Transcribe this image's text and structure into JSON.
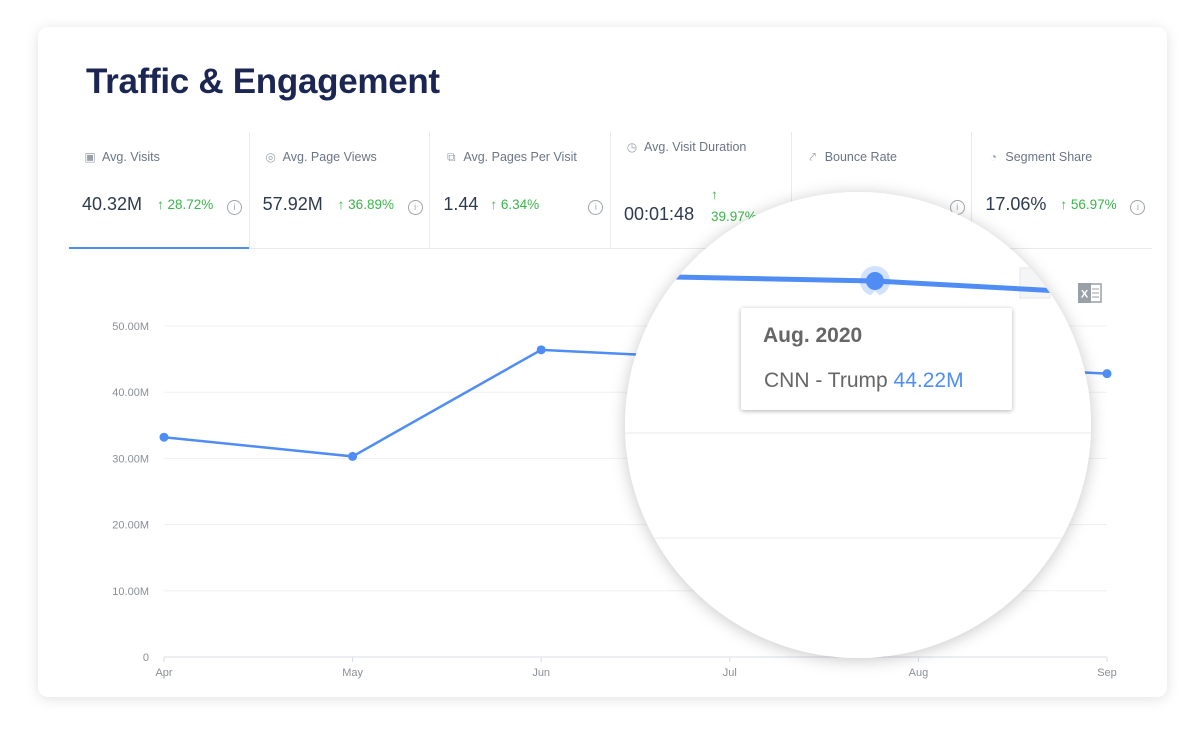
{
  "header": {
    "title": "Traffic & Engagement"
  },
  "metrics": [
    {
      "label": "Avg. Visits",
      "icon": "visitor-icon",
      "value": "40.32M",
      "change": "↑ 28.72%",
      "active": true
    },
    {
      "label": "Avg. Page Views",
      "icon": "eye-icon",
      "value": "57.92M",
      "change": "↑ 36.89%"
    },
    {
      "label": "Avg. Pages Per Visit",
      "icon": "pages-icon",
      "value": "1.44",
      "change": "↑ 6.34%"
    },
    {
      "label": "Avg. Visit Duration",
      "icon": "stopwatch-icon",
      "value": "00:01:48",
      "change": "↑ 39.97%"
    },
    {
      "label": "Bounce Rate",
      "icon": "trend-icon",
      "value": "",
      "change": ""
    },
    {
      "label": "Segment Share",
      "icon": "pie-icon",
      "value": "17.06%",
      "change": "↑ 56.97%"
    }
  ],
  "colors": {
    "line": "#4f8df5",
    "positive": "#3ab54a",
    "title": "#1b2653"
  },
  "tooltip": {
    "date": "Aug. 2020",
    "series": "CNN - Trump",
    "value": "44.22M"
  },
  "export_icon": "excel-icon",
  "chart_data": {
    "type": "line",
    "categories": [
      "Apr",
      "May",
      "Jun",
      "Jul",
      "Aug",
      "Sep"
    ],
    "series": [
      {
        "name": "CNN - Trump",
        "values": [
          33.2,
          30.3,
          46.4,
          45.0,
          44.22,
          42.8
        ]
      }
    ],
    "yticks": [
      "0",
      "10.00M",
      "20.00M",
      "30.00M",
      "40.00M",
      "50.00M"
    ],
    "ylim": [
      0,
      50
    ],
    "grid": true
  }
}
